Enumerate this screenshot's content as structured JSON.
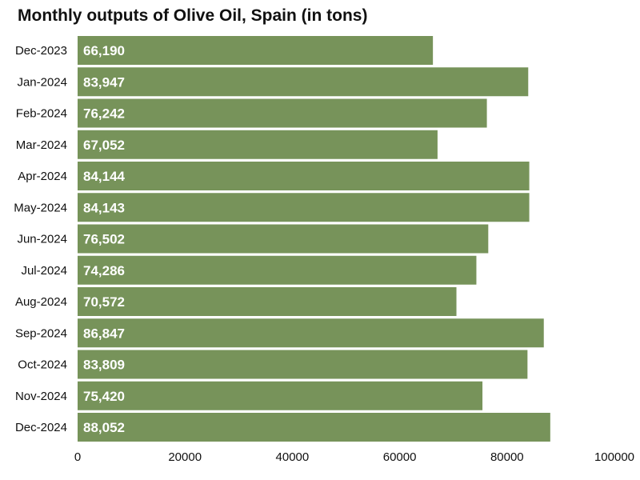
{
  "chart_data": {
    "type": "bar",
    "orientation": "horizontal",
    "title": "Monthly outputs of Olive Oil, Spain (in tons)",
    "xlabel": "",
    "ylabel": "",
    "categories": [
      "Dec-2023",
      "Jan-2024",
      "Feb-2024",
      "Mar-2024",
      "Apr-2024",
      "May-2024",
      "Jun-2024",
      "Jul-2024",
      "Aug-2024",
      "Sep-2024",
      "Oct-2024",
      "Nov-2024",
      "Dec-2024"
    ],
    "values": [
      66190,
      83947,
      76242,
      67052,
      84144,
      84143,
      76502,
      74286,
      70572,
      86847,
      83809,
      75420,
      88052
    ],
    "value_labels": [
      "66,190",
      "83,947",
      "76,242",
      "67,052",
      "84,144",
      "84,143",
      "76,502",
      "74,286",
      "70,572",
      "86,847",
      "83,809",
      "75,420",
      "88,052"
    ],
    "xlim": [
      0,
      100000
    ],
    "x_ticks": [
      0,
      20000,
      40000,
      60000,
      80000,
      100000
    ],
    "x_tick_labels": [
      "0",
      "20000",
      "40000",
      "60000",
      "80000",
      "100000"
    ],
    "grid": false,
    "bar_color": "#77935a",
    "label_color": "#ffffff"
  }
}
